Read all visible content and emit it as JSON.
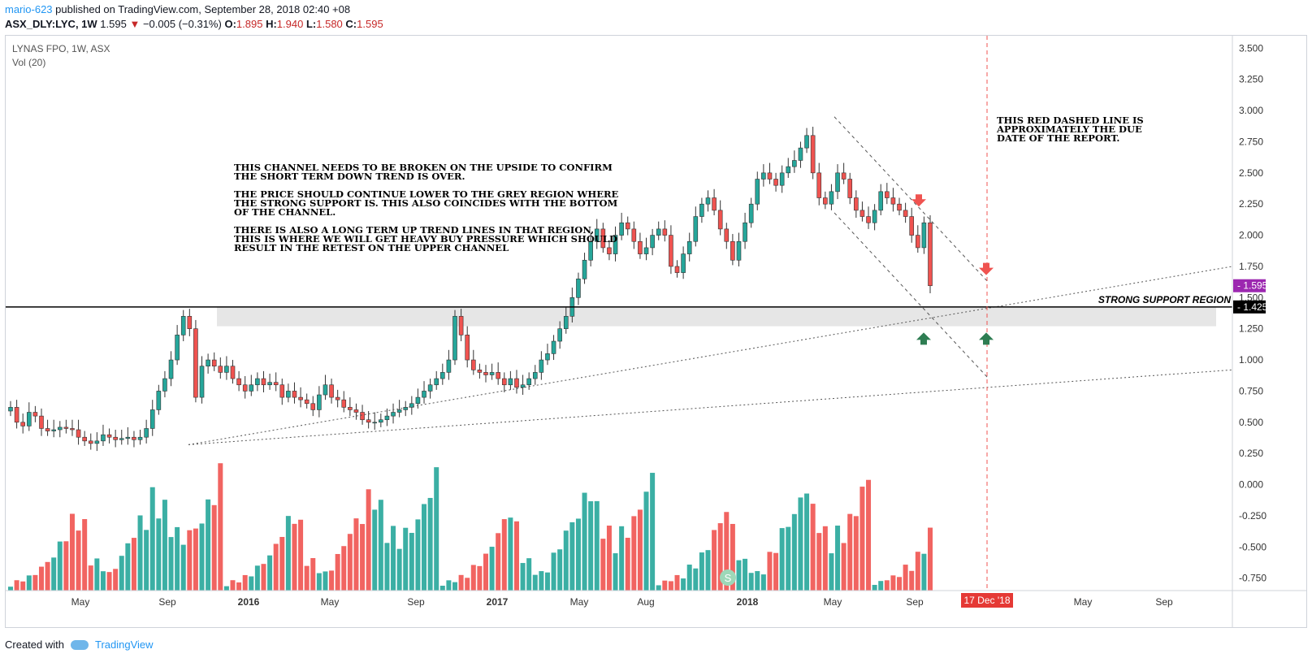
{
  "header": {
    "user": "mario-623",
    "published": "published on TradingView.com, September 28, 2018 02:40 +08",
    "symbol": "ASX_DLY:LYC, 1W",
    "price": "1.595",
    "change": "−0.005 (−0.31%)",
    "o_label": "O:",
    "o_value": "1.895",
    "h_label": "H:",
    "h_value": "1.940",
    "l_label": "L:",
    "l_value": "1.580",
    "c_label": "C:",
    "c_value": "1.595"
  },
  "legend": {
    "title": "LYNAS FPO, 1W, ASX",
    "volume": "Vol (20)"
  },
  "annotations": {
    "channel_note": [
      "THIS CHANNEL NEEDS TO BE BROKEN ON THE UPSIDE TO CONFIRM",
      "THE SHORT TERM DOWN TREND IS OVER.",
      "",
      "THE PRICE SHOULD CONTINUE LOWER TO THE GREY REGION WHERE",
      "THE STRONG SUPPORT IS. THIS ALSO COINCIDES WITH THE BOTTOM",
      "OF THE CHANNEL.",
      "",
      "THERE IS ALSO A LONG TERM UP TREND LINES IN THAT REGION,",
      "THIS IS WHERE WE WILL GET HEAVY BUY PRESSURE WHICH SHOULD",
      "RESULT IN THE RETEST ON THE UPPER CHANNEL"
    ],
    "red_line_note": [
      "THIS RED DASHED LINE IS",
      "APPROXIMATELY THE DUE",
      "DATE OF THE REPORT."
    ],
    "support_label": "STRONG SUPPORT REGION",
    "dividend_marker": "S"
  },
  "footer": {
    "created": "Created with",
    "brand": "TradingView"
  },
  "colors": {
    "up": "#26a69a",
    "down": "#ef5350",
    "support_zone": "#e6e6e6",
    "due_line": "#ef5350",
    "price_badge": "#9c27b0"
  },
  "chart_data": {
    "type": "candlestick",
    "y_ticks": [
      "3.500",
      "3.250",
      "3.000",
      "2.750",
      "2.500",
      "2.250",
      "2.000",
      "1.750",
      "1.500",
      "1.250",
      "1.000",
      "0.750",
      "0.500",
      "0.250",
      "0.000",
      "-0.250",
      "-0.500",
      "-0.750"
    ],
    "y_range": [
      -0.85,
      3.6
    ],
    "x_labels": [
      {
        "label": "May",
        "bold": false
      },
      {
        "label": "Sep",
        "bold": false
      },
      {
        "label": "2016",
        "bold": true
      },
      {
        "label": "May",
        "bold": false
      },
      {
        "label": "Sep",
        "bold": false
      },
      {
        "label": "2017",
        "bold": true
      },
      {
        "label": "May",
        "bold": false
      },
      {
        "label": "Aug",
        "bold": false
      },
      {
        "label": "2018",
        "bold": true
      },
      {
        "label": "May",
        "bold": false
      },
      {
        "label": "Sep",
        "bold": false
      },
      {
        "label": "May",
        "bold": false
      },
      {
        "label": "Sep",
        "bold": false
      }
    ],
    "due_date_label": "17 Dec '18",
    "last_price_label": "1.595",
    "support_price_label": "1.425",
    "support_zone": [
      1.27,
      1.425
    ],
    "price_series": [
      0.62,
      0.5,
      0.47,
      0.58,
      0.55,
      0.45,
      0.43,
      0.44,
      0.46,
      0.45,
      0.44,
      0.38,
      0.35,
      0.33,
      0.35,
      0.4,
      0.38,
      0.36,
      0.37,
      0.38,
      0.36,
      0.38,
      0.45,
      0.6,
      0.75,
      0.85,
      1.0,
      1.2,
      1.35,
      1.25,
      0.7,
      0.95,
      1.0,
      0.95,
      0.9,
      0.95,
      0.85,
      0.8,
      0.75,
      0.8,
      0.85,
      0.8,
      0.82,
      0.8,
      0.7,
      0.75,
      0.7,
      0.68,
      0.65,
      0.6,
      0.72,
      0.8,
      0.7,
      0.68,
      0.62,
      0.6,
      0.58,
      0.52,
      0.5,
      0.5,
      0.52,
      0.55,
      0.58,
      0.6,
      0.62,
      0.65,
      0.7,
      0.75,
      0.8,
      0.85,
      0.9,
      1.0,
      1.35,
      1.2,
      1.0,
      0.92,
      0.9,
      0.88,
      0.9,
      0.85,
      0.8,
      0.85,
      0.78,
      0.8,
      0.85,
      0.9,
      1.0,
      1.05,
      1.15,
      1.25,
      1.35,
      1.5,
      1.65,
      1.8,
      1.95,
      2.05,
      1.9,
      1.85,
      2.0,
      2.1,
      2.05,
      1.95,
      1.85,
      1.9,
      2.0,
      2.05,
      2.0,
      1.75,
      1.7,
      1.85,
      1.95,
      2.15,
      2.25,
      2.3,
      2.2,
      2.05,
      1.95,
      1.8,
      1.95,
      2.1,
      2.25,
      2.45,
      2.5,
      2.45,
      2.4,
      2.5,
      2.55,
      2.6,
      2.7,
      2.8,
      2.5,
      2.3,
      2.25,
      2.35,
      2.5,
      2.45,
      2.3,
      2.2,
      2.15,
      2.1,
      2.2,
      2.35,
      2.3,
      2.25,
      2.2,
      2.15,
      2.0,
      1.9,
      2.1,
      1.595
    ],
    "volume_series": [
      0.05,
      0.08,
      0.1,
      0.12,
      0.15,
      0.2,
      0.25,
      0.3,
      0.4,
      0.5,
      0.6,
      0.7,
      0.55,
      0.3,
      0.25,
      0.2,
      0.15,
      0.2,
      0.3,
      0.4,
      0.5,
      0.6,
      0.65,
      0.8,
      0.9,
      0.7,
      0.6,
      0.5,
      0.45,
      0.5,
      0.55,
      0.6,
      0.75,
      0.85,
      1.0
    ]
  }
}
